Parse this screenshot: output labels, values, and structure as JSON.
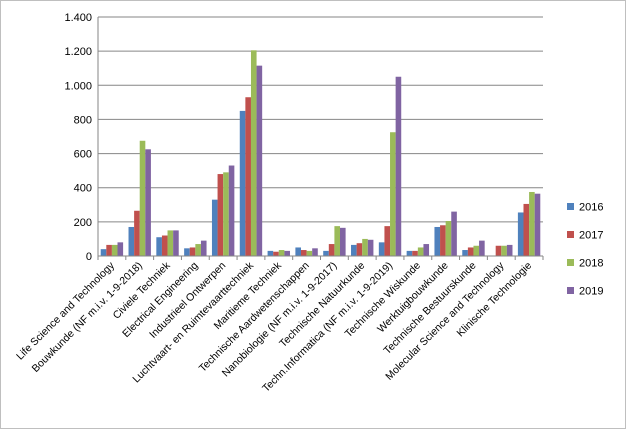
{
  "chart_data": {
    "type": "bar",
    "title": "",
    "xlabel": "",
    "ylabel": "",
    "ylim": [
      0,
      1400
    ],
    "yticks": [
      0,
      200,
      400,
      600,
      800,
      1000,
      1200,
      1400
    ],
    "ytick_labels": [
      "0",
      "200",
      "400",
      "600",
      "800",
      "1.000",
      "1.200",
      "1.400"
    ],
    "grid": true,
    "legend_position": "right",
    "categories": [
      "Life Science and Technology",
      "Bouwkunde  (NF m.i.v. 1-9-2018)",
      "Civiele Techniek",
      "Electrical Engineering",
      "Industrieel Ontwerpen",
      "Luchtvaart- en Ruimtevaarttechniek",
      "Maritieme Techniek",
      "Technische Aardwetenschappen",
      "Nanobiologie (NF m.i.v. 1-9-2017)",
      "Technische Natuurkunde",
      "Techn.Informatica (NF m.i.v. 1-9-2019)",
      "Technische Wiskunde",
      "Werktuigbouwkunde",
      "Technische Bestuurskunde",
      "Molecular Science and Technology",
      "Klinische Technologie"
    ],
    "series": [
      {
        "name": "2016",
        "color": "#4f81bd",
        "values": [
          40,
          170,
          110,
          45,
          330,
          850,
          30,
          50,
          30,
          65,
          80,
          30,
          170,
          35,
          0,
          255
        ]
      },
      {
        "name": "2017",
        "color": "#c0504d",
        "values": [
          65,
          265,
          120,
          50,
          480,
          930,
          25,
          35,
          70,
          75,
          175,
          30,
          180,
          50,
          60,
          305
        ]
      },
      {
        "name": "2018",
        "color": "#9bbb59",
        "values": [
          65,
          675,
          150,
          70,
          490,
          1205,
          35,
          30,
          175,
          100,
          725,
          50,
          205,
          60,
          60,
          375
        ]
      },
      {
        "name": "2019",
        "color": "#8064a2",
        "values": [
          80,
          625,
          150,
          90,
          530,
          1115,
          30,
          45,
          165,
          95,
          1050,
          70,
          260,
          90,
          65,
          365
        ]
      }
    ]
  }
}
